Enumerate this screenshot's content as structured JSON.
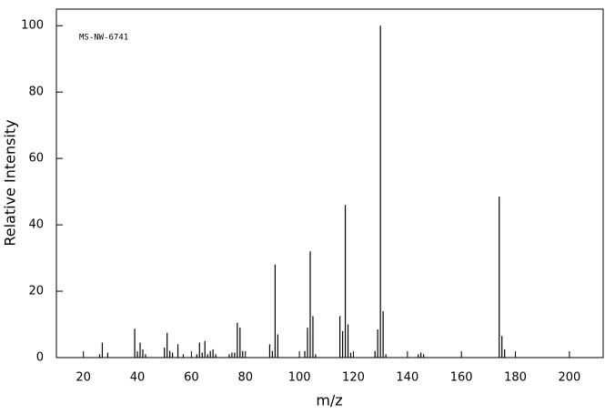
{
  "chart_data": {
    "type": "stem",
    "annotation": "MS-NW-6741",
    "xlabel": "m/z",
    "ylabel": "Relative Intensity",
    "color": "#000000",
    "x": [
      26,
      27,
      29,
      39,
      40,
      41,
      42,
      43,
      50,
      51,
      52,
      53,
      55,
      57,
      62,
      63,
      64,
      65,
      66,
      67,
      68,
      69,
      74,
      75,
      76,
      77,
      78,
      79,
      89,
      90,
      91,
      92,
      102,
      103,
      104,
      105,
      106,
      115,
      116,
      117,
      118,
      119,
      128,
      129,
      130,
      131,
      132,
      144,
      145,
      146,
      174,
      175,
      176
    ],
    "values": [
      1,
      4.5,
      1.5,
      8.7,
      1.5,
      4.5,
      2.5,
      1,
      3,
      7.5,
      2,
      1.5,
      4,
      1,
      1,
      4.5,
      1.5,
      5,
      1,
      2,
      2.5,
      1,
      1,
      1.5,
      1.5,
      10.5,
      9,
      2,
      4,
      2,
      28,
      7,
      2,
      9,
      32,
      12.5,
      1,
      12.5,
      8,
      46,
      10,
      1.5,
      2,
      8.5,
      100,
      14,
      1,
      1,
      1.5,
      1,
      48.5,
      6.5,
      2.5
    ],
    "xlim": [
      10,
      212.5
    ],
    "ylim": [
      0,
      105
    ],
    "xticks": [
      20,
      40,
      60,
      80,
      100,
      120,
      140,
      160,
      180,
      200
    ],
    "yticks": [
      0,
      20,
      40,
      60,
      80,
      100
    ]
  }
}
